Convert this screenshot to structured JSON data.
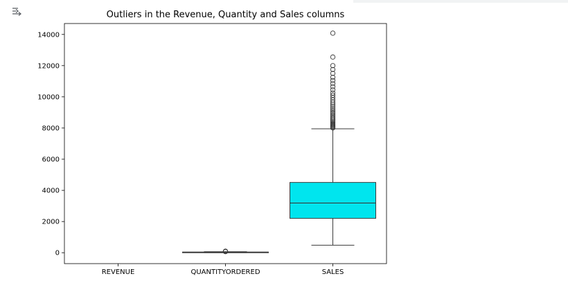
{
  "output_icon": "output-toggle-icon",
  "chart_data": {
    "type": "box",
    "title": "Outliers in the Revenue, Quantity and Sales columns",
    "xlabel": "",
    "ylabel": "",
    "categories": [
      "REVENUE",
      "QUANTITYORDERED",
      "SALES"
    ],
    "ylim": [
      -700,
      14700
    ],
    "yticks": [
      0,
      2000,
      4000,
      6000,
      8000,
      10000,
      12000,
      14000
    ],
    "grid": false,
    "box_color": "#00e5ee",
    "boxes": [
      {
        "category": "REVENUE",
        "empty": true
      },
      {
        "category": "QUANTITYORDERED",
        "whisker_low": 6,
        "q1": 27,
        "median": 35,
        "q3": 43,
        "whisker_high": 66,
        "outliers": [
          70,
          77,
          85,
          97
        ]
      },
      {
        "category": "SALES",
        "whisker_low": 482,
        "q1": 2203,
        "median": 3185,
        "q3": 4508,
        "whisker_high": 7950,
        "outliers": [
          8000,
          8050,
          8100,
          8150,
          8200,
          8250,
          8320,
          8400,
          8480,
          8560,
          8650,
          8750,
          8850,
          8950,
          9050,
          9160,
          9280,
          9400,
          9520,
          9650,
          9800,
          9950,
          10100,
          10250,
          10450,
          10650,
          10850,
          11050,
          11250,
          11500,
          11750,
          12000,
          12550,
          14082
        ]
      }
    ]
  }
}
